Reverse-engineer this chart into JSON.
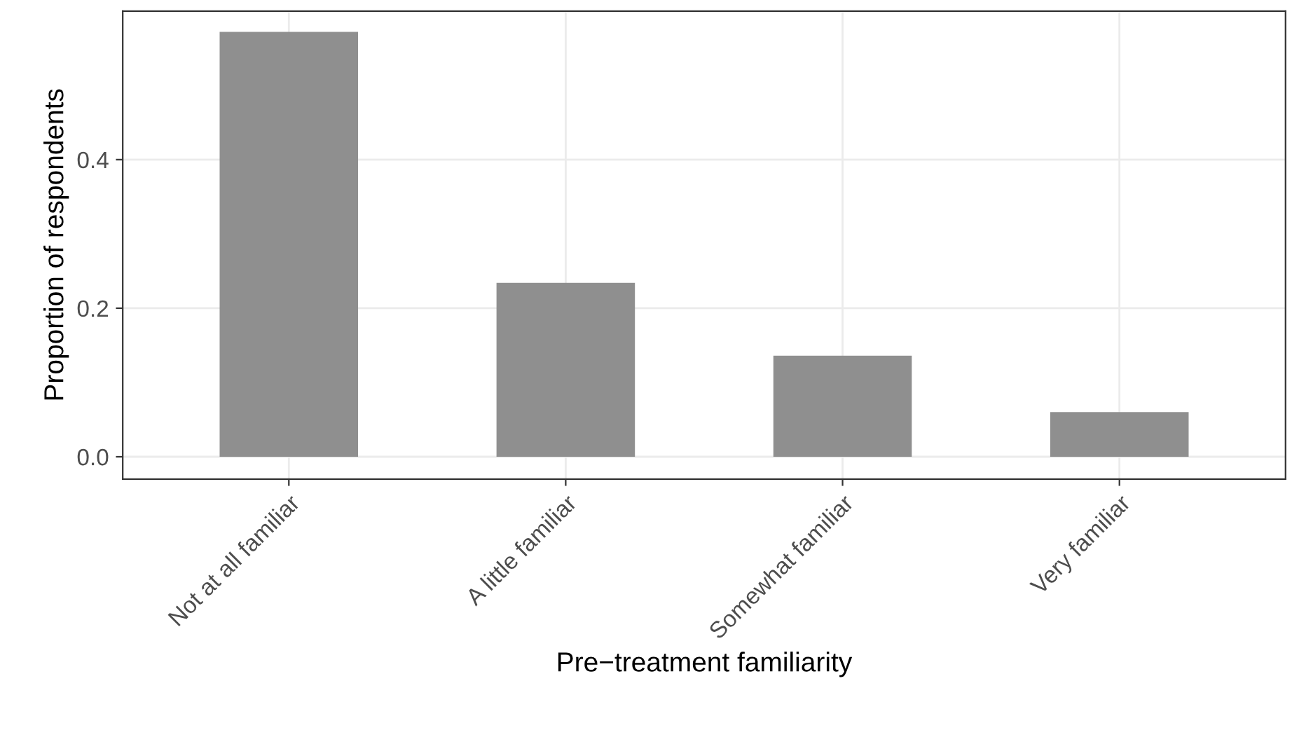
{
  "chart_data": {
    "type": "bar",
    "xlabel": "Pre−treatment familiarity",
    "ylabel": "Proportion of respondents",
    "categories": [
      "Not at all familiar",
      "A little familiar",
      "Somewhat familiar",
      "Very familiar"
    ],
    "values": [
      0.572,
      0.234,
      0.136,
      0.06
    ],
    "color": "#8f8f8f",
    "ylim": [
      -0.03,
      0.6
    ],
    "yticks": [
      {
        "value": 0,
        "label": "0.0"
      },
      {
        "value": 0.2,
        "label": "0.2"
      },
      {
        "value": 0.4,
        "label": "0.4"
      }
    ],
    "grid": true,
    "legend": false
  }
}
